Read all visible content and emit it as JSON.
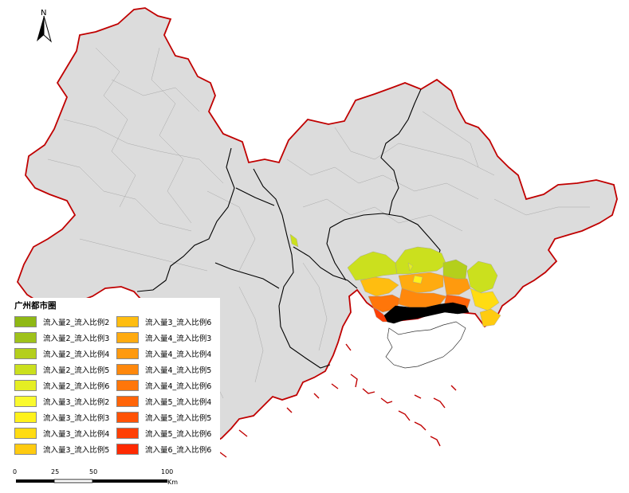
{
  "north": {
    "label": "N"
  },
  "legend": {
    "title": "广州都市圈",
    "items": [
      {
        "label": "流入量2_流入比例2",
        "color": "#8fb814"
      },
      {
        "label": "流入量2_流入比例3",
        "color": "#9fc21a"
      },
      {
        "label": "流入量2_流入比例4",
        "color": "#b4cf1c"
      },
      {
        "label": "流入量2_流入比例5",
        "color": "#cbe01e"
      },
      {
        "label": "流入量2_流入比例6",
        "color": "#e5ee23"
      },
      {
        "label": "流入量3_流入比例2",
        "color": "#fafa2e"
      },
      {
        "label": "流入量3_流入比例3",
        "color": "#fff21b"
      },
      {
        "label": "流入量3_流入比例4",
        "color": "#ffdc12"
      },
      {
        "label": "流入量3_流入比例5",
        "color": "#ffcb10"
      },
      {
        "label": "流入量3_流入比例6",
        "color": "#ffbd10"
      },
      {
        "label": "流入量4_流入比例3",
        "color": "#ffab10"
      },
      {
        "label": "流入量4_流入比例4",
        "color": "#ff9a0e"
      },
      {
        "label": "流入量4_流入比例5",
        "color": "#ff880c"
      },
      {
        "label": "流入量4_流入比例6",
        "color": "#ff760a"
      },
      {
        "label": "流入量5_流入比例4",
        "color": "#ff6408"
      },
      {
        "label": "流入量5_流入比例5",
        "color": "#ff5206"
      },
      {
        "label": "流入量5_流入比例6",
        "color": "#ff3f04"
      },
      {
        "label": "流入量6_流入比例6",
        "color": "#ff2a02"
      }
    ]
  },
  "scale": {
    "ticks": [
      "0",
      "25",
      "50",
      "100"
    ],
    "unit": "Km"
  },
  "colors": {
    "base_fill": "#dcdcdc",
    "outer_border": "#c00000",
    "inner_border": "#000000",
    "hotspot": "#000000"
  }
}
